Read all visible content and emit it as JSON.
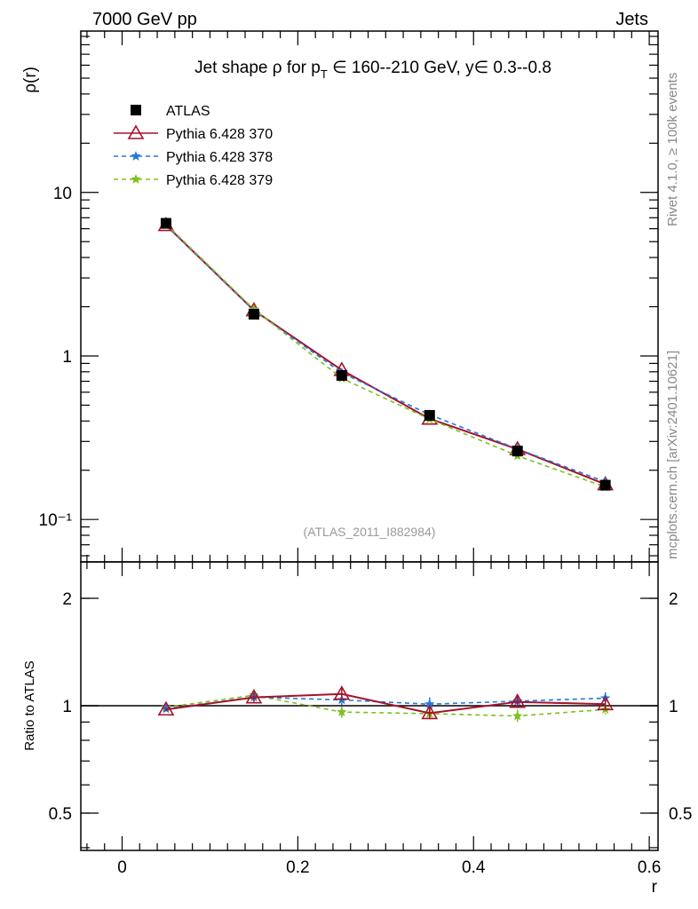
{
  "header": {
    "left": "7000 GeV pp",
    "right": "Jets"
  },
  "side_text": {
    "rivet": "Rivet 4.1.0, ≥ 100k events",
    "mcplots": "mcplots.cern.ch [arXiv:2401.10621]"
  },
  "chart_data": [
    {
      "type": "line",
      "title": "Jet shape ρ for p_T ∈ 160--210 GeV, y∈ 0.3--0.8",
      "title_parts": {
        "a": "Jet shape ρ for p",
        "sub": "T",
        "b": " ∈ 160--210 GeV, y∈ 0.3--0.8"
      },
      "ylabel": "ρ(r)",
      "yscale": "log",
      "ylim": [
        0.055,
        97
      ],
      "xlim": [
        -0.047,
        0.61
      ],
      "yticks": [
        {
          "v": 10,
          "label": "10"
        },
        {
          "v": 1,
          "label": "1"
        },
        {
          "v": 0.1,
          "label": "10⁻¹"
        }
      ],
      "annotation": "(ATLAS_2011_I882984)",
      "legend_position": "top-left",
      "x": [
        0.05,
        0.15,
        0.25,
        0.35,
        0.45,
        0.55
      ],
      "series": [
        {
          "name": "ATLAS",
          "values": [
            6.47,
            1.8,
            0.76,
            0.433,
            0.262,
            0.162
          ],
          "color": "#000000"
        },
        {
          "name": "Pythia 6.428 370",
          "values": [
            6.31,
            1.9,
            0.82,
            0.413,
            0.269,
            0.164
          ],
          "color": "#a5122a"
        },
        {
          "name": "Pythia 6.428 378",
          "values": [
            6.34,
            1.9,
            0.79,
            0.437,
            0.27,
            0.17
          ],
          "color": "#1f78e0"
        },
        {
          "name": "Pythia 6.428 379",
          "values": [
            6.41,
            1.93,
            0.73,
            0.411,
            0.245,
            0.158
          ],
          "color": "#7fbf1f"
        }
      ]
    },
    {
      "type": "line",
      "ylabel": "Ratio to ATLAS",
      "xlabel": "r",
      "yscale": "log",
      "ylim": [
        0.393,
        2.53
      ],
      "xlim": [
        -0.047,
        0.61
      ],
      "yticks": [
        {
          "v": 2,
          "label": "2"
        },
        {
          "v": 1,
          "label": "1"
        },
        {
          "v": 0.5,
          "label": "0.5"
        }
      ],
      "xticks": [
        {
          "v": 0,
          "label": "0"
        },
        {
          "v": 0.2,
          "label": "0.2"
        },
        {
          "v": 0.4,
          "label": "0.4"
        },
        {
          "v": 0.6,
          "label": "0.6"
        }
      ],
      "x": [
        0.05,
        0.15,
        0.25,
        0.35,
        0.45,
        0.55
      ],
      "series": [
        {
          "name": "Pythia 6.428 370",
          "values": [
            0.976,
            1.055,
            1.079,
            0.953,
            1.025,
            1.01
          ],
          "err": [
            0.01,
            0.03,
            0.04,
            0.035,
            0.04,
            0.03
          ],
          "color": "#a5122a"
        },
        {
          "name": "Pythia 6.428 378",
          "values": [
            0.98,
            1.057,
            1.038,
            1.01,
            1.03,
            1.05
          ],
          "err": [
            0.01,
            0.03,
            0.035,
            0.045,
            0.04,
            0.04
          ],
          "color": "#1f78e0"
        },
        {
          "name": "Pythia 6.428 379",
          "values": [
            0.99,
            1.07,
            0.96,
            0.95,
            0.936,
            0.976
          ],
          "err": [
            0.01,
            0.03,
            0.035,
            0.035,
            0.04,
            0.03
          ],
          "color": "#7fbf1f"
        }
      ]
    }
  ]
}
